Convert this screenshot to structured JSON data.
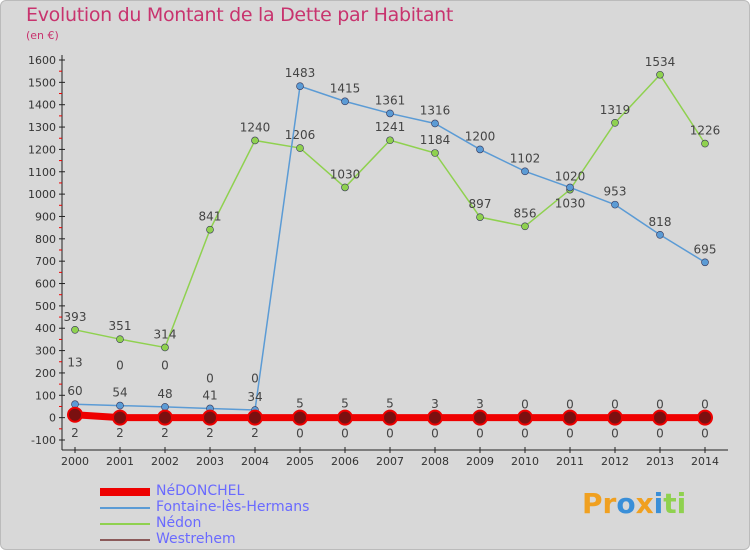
{
  "title": "Evolution du Montant de la Dette par Habitant",
  "unit": "(en €)",
  "logo": "Proxiti",
  "chart_data": {
    "type": "line",
    "title": "Evolution du Montant de la Dette par Habitant",
    "ylabel": "(en €)",
    "x": [
      2000,
      2001,
      2002,
      2003,
      2004,
      2005,
      2006,
      2007,
      2008,
      2009,
      2010,
      2011,
      2012,
      2013,
      2014
    ],
    "ylim": [
      -100,
      1600
    ],
    "yticks": [
      -100,
      0,
      100,
      200,
      300,
      400,
      500,
      600,
      700,
      800,
      900,
      1000,
      1100,
      1200,
      1300,
      1400,
      1500,
      1600
    ],
    "legend_position": "bottom-left",
    "series": [
      {
        "name": "NéDONCHEL",
        "color": "#ee0000",
        "values": [
          13,
          0,
          0,
          0,
          0,
          0,
          0,
          0,
          0,
          0,
          0,
          0,
          0,
          0,
          0
        ]
      },
      {
        "name": "Fontaine-lès-Hermans",
        "color": "#5b9bd5",
        "values": [
          60,
          54,
          48,
          41,
          34,
          1483,
          1415,
          1361,
          1316,
          1200,
          1102,
          1030,
          953,
          818,
          695
        ]
      },
      {
        "name": "Nédon",
        "color": "#8fd14f",
        "values": [
          393,
          351,
          314,
          841,
          1240,
          1206,
          1030,
          1241,
          1184,
          897,
          856,
          1020,
          1319,
          1534,
          1226
        ]
      },
      {
        "name": "Westrehem",
        "color": "#8b5a5a",
        "values": [
          2,
          2,
          2,
          2,
          2,
          5,
          5,
          5,
          3,
          3,
          0,
          0,
          0,
          0,
          0
        ]
      }
    ]
  }
}
